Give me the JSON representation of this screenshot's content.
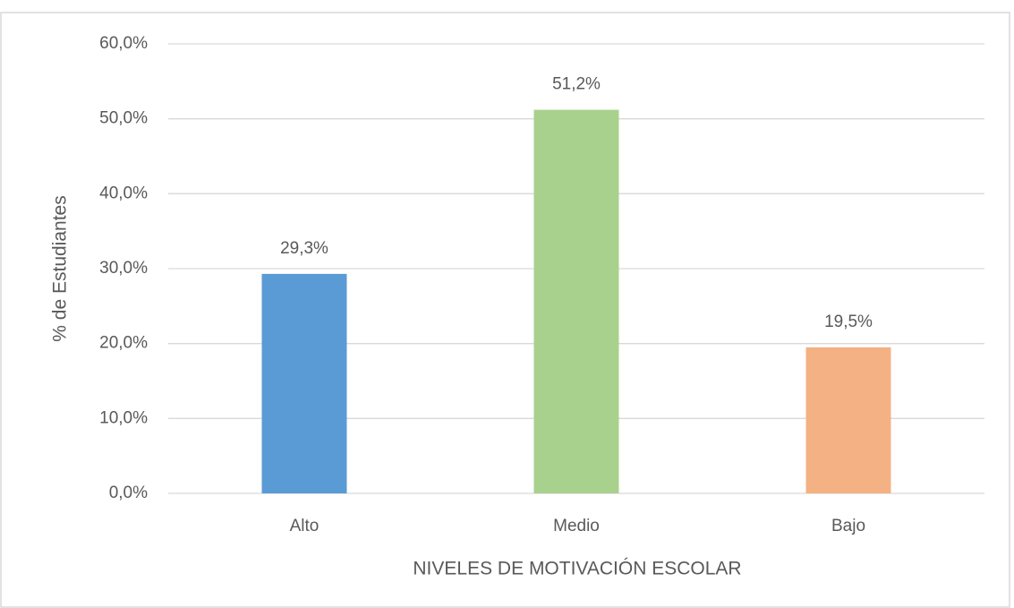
{
  "chart_data": {
    "type": "bar",
    "categories": [
      "Alto",
      "Medio",
      "Bajo"
    ],
    "values": [
      29.3,
      51.2,
      19.5
    ],
    "value_labels": [
      "29,3%",
      "51,2%",
      "19,5%"
    ],
    "colors": [
      "#5b9bd5",
      "#a9d18e",
      "#f4b183"
    ],
    "x_label": "NIVELES DE MOTIVACIÓN ESCOLAR",
    "y_label": "% de Estudiantes",
    "ylim": [
      0,
      60
    ],
    "yticks": [
      {
        "value": 0,
        "label": "0,0%"
      },
      {
        "value": 10,
        "label": "10,0%"
      },
      {
        "value": 20,
        "label": "20,0%"
      },
      {
        "value": 30,
        "label": "30,0%"
      },
      {
        "value": 40,
        "label": "40,0%"
      },
      {
        "value": 50,
        "label": "50,0%"
      },
      {
        "value": 60,
        "label": "60,0%"
      }
    ],
    "grid": true
  }
}
